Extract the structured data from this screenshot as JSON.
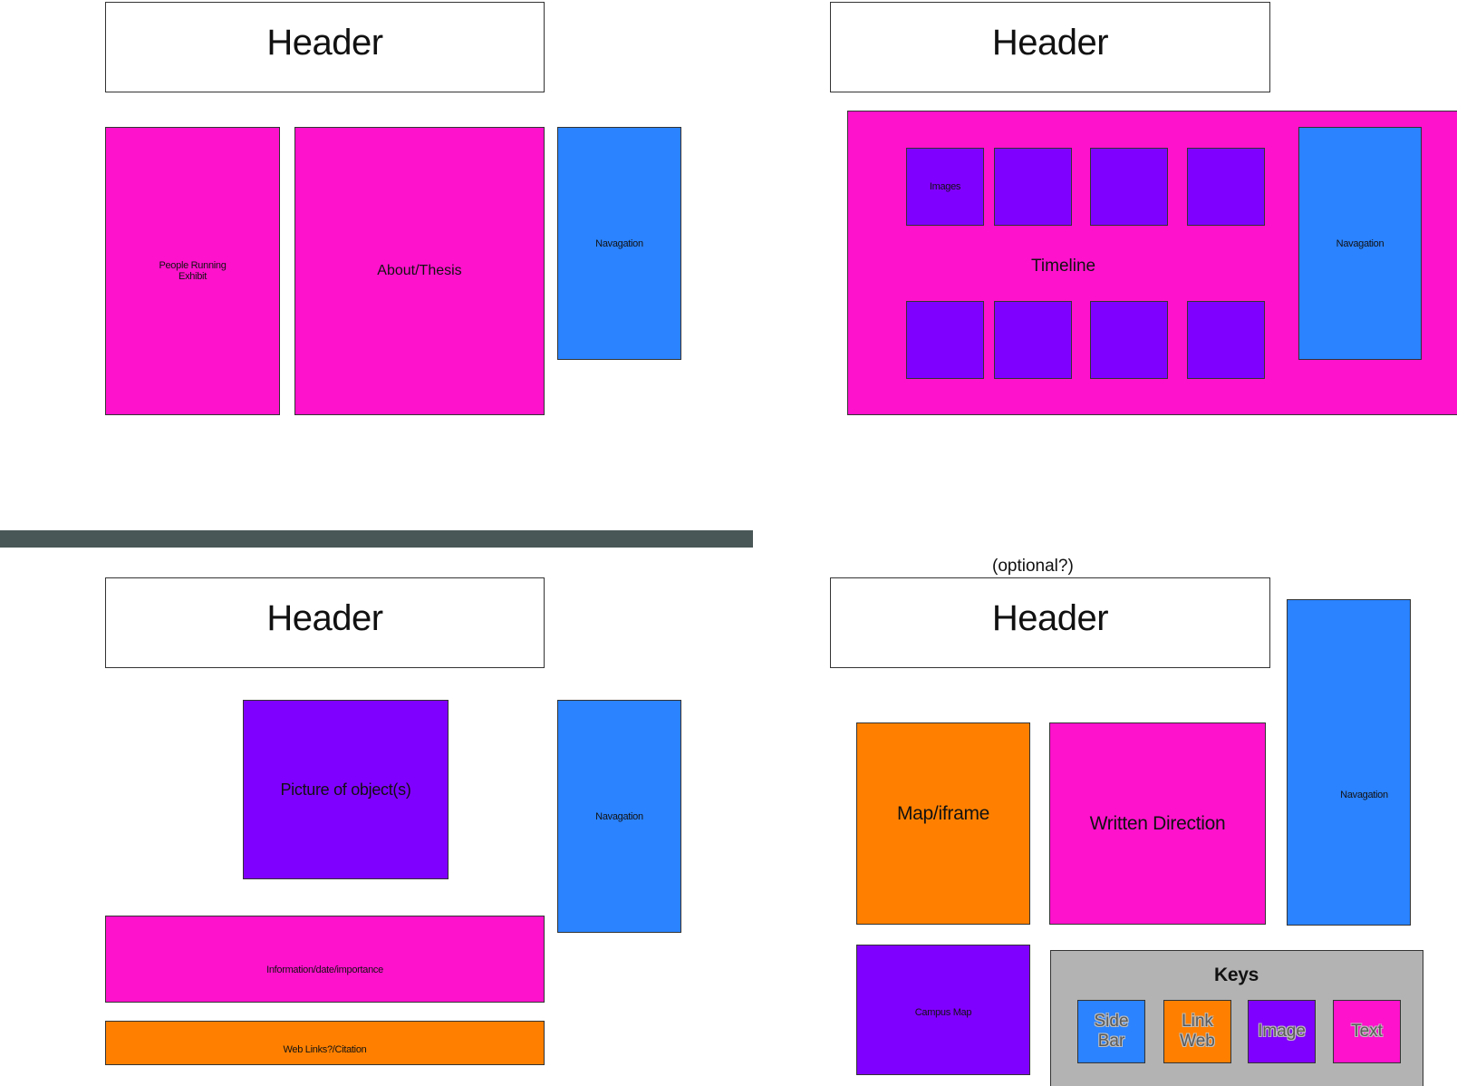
{
  "layout1": {
    "header": "Header",
    "people_running": "People Running\nExhibit",
    "about": "About/Thesis",
    "nav": "Navagation"
  },
  "layout2": {
    "header": "Header",
    "timeline": "Timeline",
    "images_label": "Images",
    "nav": "Navagation"
  },
  "layout3": {
    "header": "Header",
    "picture": "Picture of object(s)",
    "nav": "Navagation",
    "info": "Information/date/importance",
    "weblinks": "Web Links?/Citation"
  },
  "layout4": {
    "optional_note": "(optional?)",
    "header": "Header",
    "map": "Map/iframe",
    "written": "Written Direction",
    "nav": "Navagation",
    "campus_map": "Campus Map"
  },
  "keys": {
    "title": "Keys",
    "items": [
      {
        "label": "Side\nBar",
        "color": "#2b83ff"
      },
      {
        "label": "Link\nWeb",
        "color": "#ff8000"
      },
      {
        "label": "Image",
        "color": "#8000ff"
      },
      {
        "label": "Text",
        "color": "#ff12cc"
      }
    ]
  },
  "colors": {
    "pink": "#ff12cc",
    "blue": "#2b83ff",
    "purple": "#8000ff",
    "orange": "#ff8000",
    "gray": "#b3b3b3",
    "divider": "#4a5757"
  }
}
